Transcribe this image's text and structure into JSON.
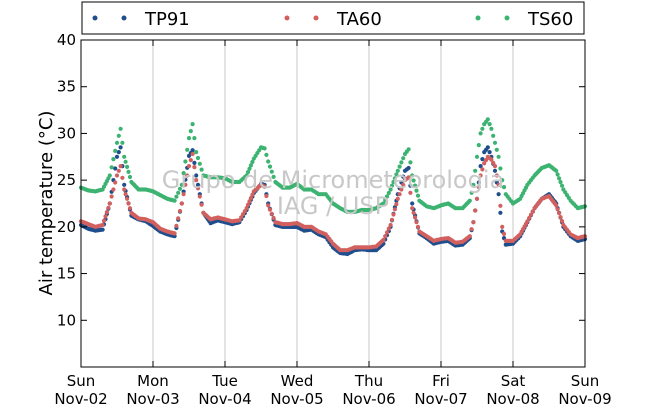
{
  "chart_data": {
    "type": "scatter",
    "ylabel": "Air temperature (°C)",
    "xlabel": "",
    "ylim": [
      5,
      40
    ],
    "yticks": [
      10,
      15,
      20,
      25,
      30,
      35,
      40
    ],
    "x_range_days": [
      "Nov-02",
      "Nov-09"
    ],
    "x_tick_labels": [
      {
        "day": "Sun",
        "date": "Nov-02"
      },
      {
        "day": "Mon",
        "date": "Nov-03"
      },
      {
        "day": "Tue",
        "date": "Nov-04"
      },
      {
        "day": "Wed",
        "date": "Nov-05"
      },
      {
        "day": "Thu",
        "date": "Nov-06"
      },
      {
        "day": "Fri",
        "date": "Nov-07"
      },
      {
        "day": "Sat",
        "date": "Nov-08"
      },
      {
        "day": "Sun",
        "date": "Nov-09"
      }
    ],
    "grid": "vertical",
    "legend_position": "top",
    "watermark": [
      "Grupo de Micrometeorologia",
      "IAG / USP"
    ],
    "series": [
      {
        "name": "TP91",
        "color": "#1f4e8c",
        "points": [
          [
            0,
            20.2
          ],
          [
            0.1,
            19.8
          ],
          [
            0.2,
            19.6
          ],
          [
            0.3,
            19.7
          ],
          [
            0.4,
            22.5
          ],
          [
            0.5,
            27.5
          ],
          [
            0.55,
            28.5
          ],
          [
            0.6,
            24.5
          ],
          [
            0.7,
            21.2
          ],
          [
            0.8,
            20.8
          ],
          [
            0.9,
            20.6
          ],
          [
            1.0,
            20.1
          ],
          [
            1.1,
            19.5
          ],
          [
            1.2,
            19.2
          ],
          [
            1.3,
            19.0
          ],
          [
            1.4,
            22.5
          ],
          [
            1.5,
            27.6
          ],
          [
            1.55,
            28.2
          ],
          [
            1.6,
            25.5
          ],
          [
            1.7,
            21.5
          ],
          [
            1.8,
            20.4
          ],
          [
            1.9,
            20.7
          ],
          [
            2.0,
            20.5
          ],
          [
            2.1,
            20.3
          ],
          [
            2.2,
            20.5
          ],
          [
            2.3,
            21.8
          ],
          [
            2.4,
            23.6
          ],
          [
            2.5,
            24.6
          ],
          [
            2.55,
            24.5
          ],
          [
            2.6,
            22.5
          ],
          [
            2.7,
            20.2
          ],
          [
            2.8,
            20.0
          ],
          [
            2.9,
            20.0
          ],
          [
            3.0,
            20.0
          ],
          [
            3.1,
            19.6
          ],
          [
            3.2,
            19.7
          ],
          [
            3.3,
            19.2
          ],
          [
            3.4,
            18.9
          ],
          [
            3.5,
            17.8
          ],
          [
            3.6,
            17.2
          ],
          [
            3.7,
            17.1
          ],
          [
            3.8,
            17.5
          ],
          [
            3.9,
            17.6
          ],
          [
            4.0,
            17.5
          ],
          [
            4.1,
            17.5
          ],
          [
            4.2,
            18.2
          ],
          [
            4.3,
            20.0
          ],
          [
            4.4,
            23.5
          ],
          [
            4.5,
            26.0
          ],
          [
            4.55,
            26.3
          ],
          [
            4.6,
            22.5
          ],
          [
            4.7,
            19.3
          ],
          [
            4.8,
            18.8
          ],
          [
            4.9,
            18.2
          ],
          [
            5.0,
            18.4
          ],
          [
            5.1,
            18.5
          ],
          [
            5.2,
            18.0
          ],
          [
            5.3,
            18.1
          ],
          [
            5.4,
            18.8
          ],
          [
            5.45,
            20.5
          ],
          [
            5.5,
            23.0
          ],
          [
            5.55,
            26.5
          ],
          [
            5.6,
            28.0
          ],
          [
            5.65,
            28.5
          ],
          [
            5.7,
            27.5
          ],
          [
            5.75,
            26.0
          ],
          [
            5.8,
            23.5
          ],
          [
            5.85,
            19.5
          ],
          [
            5.9,
            18.1
          ],
          [
            6.0,
            18.2
          ],
          [
            6.1,
            19.0
          ],
          [
            6.2,
            20.5
          ],
          [
            6.3,
            22.0
          ],
          [
            6.4,
            23.0
          ],
          [
            6.5,
            23.5
          ],
          [
            6.6,
            22.5
          ],
          [
            6.7,
            20.0
          ],
          [
            6.8,
            19.0
          ],
          [
            6.9,
            18.5
          ],
          [
            7.0,
            18.7
          ]
        ]
      },
      {
        "name": "TA60",
        "color": "#d1605e",
        "points": [
          [
            0,
            20.6
          ],
          [
            0.1,
            20.3
          ],
          [
            0.2,
            20.0
          ],
          [
            0.3,
            20.2
          ],
          [
            0.4,
            22.5
          ],
          [
            0.5,
            25.5
          ],
          [
            0.55,
            26.5
          ],
          [
            0.6,
            24.0
          ],
          [
            0.7,
            21.5
          ],
          [
            0.8,
            20.9
          ],
          [
            0.9,
            20.8
          ],
          [
            1.0,
            20.5
          ],
          [
            1.1,
            19.8
          ],
          [
            1.2,
            19.5
          ],
          [
            1.3,
            19.3
          ],
          [
            1.4,
            22.5
          ],
          [
            1.5,
            26.5
          ],
          [
            1.55,
            27.8
          ],
          [
            1.6,
            25.0
          ],
          [
            1.7,
            21.5
          ],
          [
            1.8,
            20.8
          ],
          [
            1.9,
            21.0
          ],
          [
            2.0,
            20.8
          ],
          [
            2.1,
            20.6
          ],
          [
            2.2,
            20.7
          ],
          [
            2.3,
            22.0
          ],
          [
            2.4,
            23.8
          ],
          [
            2.5,
            24.5
          ],
          [
            2.55,
            24.3
          ],
          [
            2.6,
            22.3
          ],
          [
            2.7,
            20.5
          ],
          [
            2.8,
            20.3
          ],
          [
            2.9,
            20.3
          ],
          [
            3.0,
            20.4
          ],
          [
            3.1,
            20.0
          ],
          [
            3.2,
            20.0
          ],
          [
            3.3,
            19.5
          ],
          [
            3.4,
            19.2
          ],
          [
            3.5,
            18.2
          ],
          [
            3.6,
            17.5
          ],
          [
            3.7,
            17.5
          ],
          [
            3.8,
            17.8
          ],
          [
            3.9,
            17.8
          ],
          [
            4.0,
            17.8
          ],
          [
            4.1,
            17.9
          ],
          [
            4.2,
            18.6
          ],
          [
            4.3,
            20.2
          ],
          [
            4.4,
            23.0
          ],
          [
            4.5,
            25.0
          ],
          [
            4.55,
            25.3
          ],
          [
            4.6,
            22.0
          ],
          [
            4.7,
            19.5
          ],
          [
            4.8,
            19.0
          ],
          [
            4.9,
            18.5
          ],
          [
            5.0,
            18.7
          ],
          [
            5.1,
            18.8
          ],
          [
            5.2,
            18.3
          ],
          [
            5.3,
            18.4
          ],
          [
            5.4,
            19.0
          ],
          [
            5.45,
            20.5
          ],
          [
            5.5,
            23.0
          ],
          [
            5.55,
            25.5
          ],
          [
            5.6,
            26.8
          ],
          [
            5.65,
            27.5
          ],
          [
            5.7,
            27.2
          ],
          [
            5.75,
            26.5
          ],
          [
            5.8,
            24.5
          ],
          [
            5.85,
            20.0
          ],
          [
            5.9,
            18.5
          ],
          [
            6.0,
            18.5
          ],
          [
            6.1,
            19.2
          ],
          [
            6.2,
            20.6
          ],
          [
            6.3,
            22.0
          ],
          [
            6.4,
            23.0
          ],
          [
            6.5,
            23.3
          ],
          [
            6.6,
            22.3
          ],
          [
            6.7,
            20.2
          ],
          [
            6.8,
            19.2
          ],
          [
            6.9,
            18.8
          ],
          [
            7.0,
            19.0
          ]
        ]
      },
      {
        "name": "TS60",
        "color": "#3cb371",
        "points": [
          [
            0,
            24.2
          ],
          [
            0.1,
            23.9
          ],
          [
            0.2,
            23.8
          ],
          [
            0.3,
            24.0
          ],
          [
            0.4,
            25.5
          ],
          [
            0.5,
            29.0
          ],
          [
            0.55,
            30.5
          ],
          [
            0.6,
            27.5
          ],
          [
            0.7,
            24.8
          ],
          [
            0.8,
            24.0
          ],
          [
            0.9,
            24.0
          ],
          [
            1.0,
            23.8
          ],
          [
            1.1,
            23.4
          ],
          [
            1.2,
            23.0
          ],
          [
            1.3,
            22.8
          ],
          [
            1.4,
            24.5
          ],
          [
            1.5,
            29.5
          ],
          [
            1.55,
            31.0
          ],
          [
            1.6,
            28.0
          ],
          [
            1.7,
            25.5
          ],
          [
            1.8,
            25.3
          ],
          [
            1.9,
            25.3
          ],
          [
            2.0,
            25.2
          ],
          [
            2.1,
            24.8
          ],
          [
            2.2,
            24.8
          ],
          [
            2.3,
            25.5
          ],
          [
            2.4,
            27.3
          ],
          [
            2.5,
            28.5
          ],
          [
            2.55,
            28.4
          ],
          [
            2.6,
            27.0
          ],
          [
            2.7,
            24.8
          ],
          [
            2.8,
            24.2
          ],
          [
            2.9,
            24.2
          ],
          [
            3.0,
            24.6
          ],
          [
            3.1,
            24.0
          ],
          [
            3.2,
            24.0
          ],
          [
            3.3,
            23.5
          ],
          [
            3.4,
            23.5
          ],
          [
            3.5,
            22.5
          ],
          [
            3.6,
            22.0
          ],
          [
            3.7,
            21.6
          ],
          [
            3.8,
            21.6
          ],
          [
            3.9,
            21.8
          ],
          [
            4.0,
            21.8
          ],
          [
            4.1,
            22.0
          ],
          [
            4.2,
            22.5
          ],
          [
            4.3,
            24.0
          ],
          [
            4.4,
            26.0
          ],
          [
            4.5,
            27.8
          ],
          [
            4.55,
            28.3
          ],
          [
            4.6,
            25.5
          ],
          [
            4.7,
            22.8
          ],
          [
            4.8,
            22.2
          ],
          [
            4.9,
            22.0
          ],
          [
            5.0,
            22.3
          ],
          [
            5.1,
            22.5
          ],
          [
            5.2,
            22.0
          ],
          [
            5.3,
            22.0
          ],
          [
            5.4,
            22.8
          ],
          [
            5.45,
            24.5
          ],
          [
            5.5,
            27.5
          ],
          [
            5.55,
            30.0
          ],
          [
            5.6,
            31.0
          ],
          [
            5.65,
            31.5
          ],
          [
            5.7,
            30.5
          ],
          [
            5.75,
            29.0
          ],
          [
            5.8,
            27.5
          ],
          [
            5.85,
            25.0
          ],
          [
            5.9,
            23.5
          ],
          [
            6.0,
            22.5
          ],
          [
            6.1,
            23.0
          ],
          [
            6.2,
            24.5
          ],
          [
            6.3,
            25.5
          ],
          [
            6.4,
            26.3
          ],
          [
            6.5,
            26.6
          ],
          [
            6.6,
            26.0
          ],
          [
            6.7,
            24.0
          ],
          [
            6.8,
            22.8
          ],
          [
            6.9,
            22.0
          ],
          [
            7.0,
            22.2
          ]
        ]
      }
    ]
  }
}
